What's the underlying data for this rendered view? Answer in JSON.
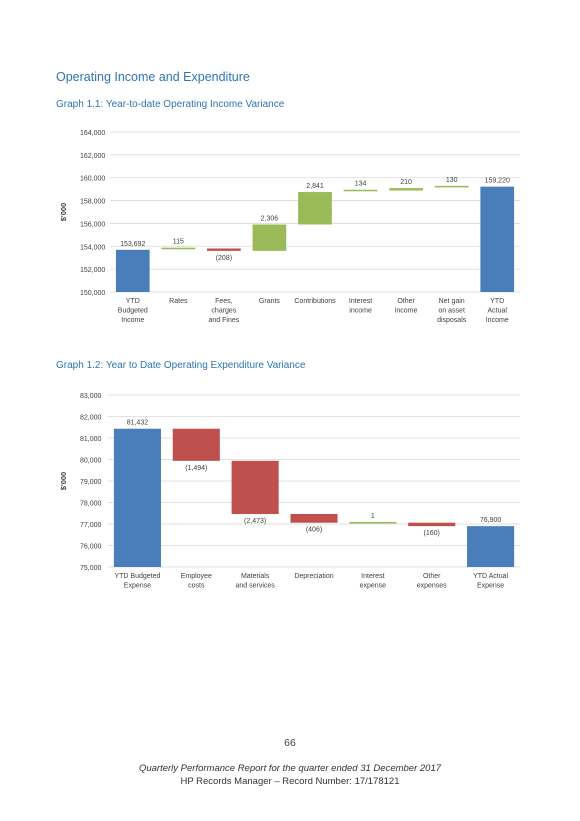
{
  "section_title": "Operating Income and Expenditure",
  "page_number": "66",
  "footer": {
    "line1": "Quarterly Performance Report for the quarter ended 31 December 2017",
    "line2": "HP Records Manager – Record Number: 17/178121"
  },
  "colors": {
    "total": "#4a7ebb",
    "increase": "#9bbb59",
    "decrease": "#c0504d",
    "grid": "#d9d9d9"
  },
  "chart_data": [
    {
      "type": "bar",
      "subtype": "waterfall",
      "title": "Graph 1.1:  Year-to-date Operating Income Variance",
      "ylabel": "$'000",
      "ylim": [
        150000,
        164000
      ],
      "yticks": [
        150000,
        152000,
        154000,
        156000,
        158000,
        160000,
        162000,
        164000
      ],
      "ytick_labels": [
        "150,000",
        "152,000",
        "154,000",
        "156,000",
        "158,000",
        "160,000",
        "162,000",
        "164,000"
      ],
      "grid": true,
      "categories": [
        [
          "YTD",
          "Budgeted",
          "Income"
        ],
        [
          "Rates"
        ],
        [
          "Fees,",
          "charges",
          "and Fines"
        ],
        [
          "Grants"
        ],
        [
          "Contributions"
        ],
        [
          "Interest",
          "income"
        ],
        [
          "Other",
          "income"
        ],
        [
          "Net gain",
          "on asset",
          "disposals"
        ],
        [
          "YTD",
          "Actual",
          "Income"
        ]
      ],
      "values": [
        153692,
        115,
        -208,
        2306,
        2841,
        134,
        210,
        130,
        159220
      ],
      "kinds": [
        "total",
        "delta",
        "delta",
        "delta",
        "delta",
        "delta",
        "delta",
        "delta",
        "total"
      ],
      "data_labels": [
        "153,692",
        "115",
        "(208)",
        "2,306",
        "2,841",
        "134",
        "210",
        "130",
        "159,220"
      ]
    },
    {
      "type": "bar",
      "subtype": "waterfall",
      "title": "Graph 1.2:  Year to Date Operating Expenditure Variance",
      "ylabel": "$'000",
      "ylim": [
        75000,
        83000
      ],
      "yticks": [
        75000,
        76000,
        77000,
        78000,
        79000,
        80000,
        81000,
        82000,
        83000
      ],
      "ytick_labels": [
        "75,000",
        "76,000",
        "77,000",
        "78,000",
        "79,000",
        "80,000",
        "81,000",
        "82,000",
        "83,000"
      ],
      "grid": true,
      "categories": [
        [
          "YTD Budgeted",
          "Expense"
        ],
        [
          "Employee",
          "costs"
        ],
        [
          "Materials",
          "and services"
        ],
        [
          "Depreciation"
        ],
        [
          "Interest",
          "expense"
        ],
        [
          "Other",
          "expenses"
        ],
        [
          "YTD Actual",
          "Expense"
        ]
      ],
      "values": [
        81432,
        -1494,
        -2473,
        -406,
        1,
        -160,
        76900
      ],
      "kinds": [
        "total",
        "delta",
        "delta",
        "delta",
        "delta",
        "delta",
        "total"
      ],
      "data_labels": [
        "81,432",
        "(1,494)",
        "(2,473)",
        "(406)",
        "1",
        "(160)",
        "76,900"
      ]
    }
  ]
}
